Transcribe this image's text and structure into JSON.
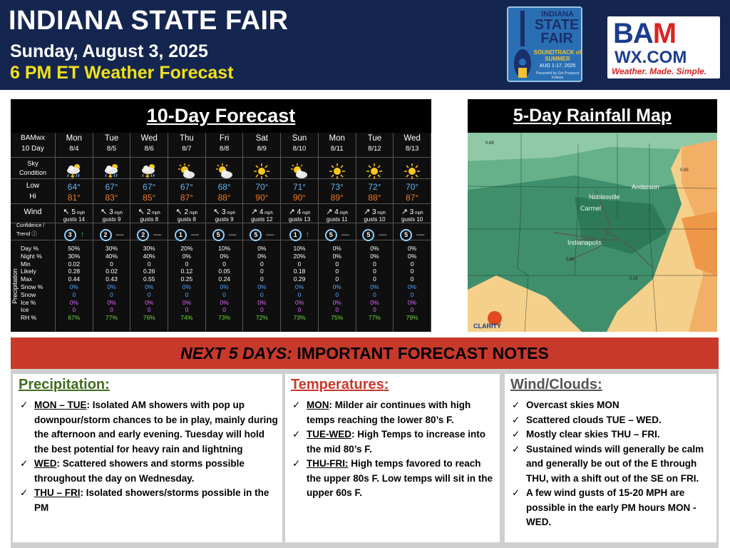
{
  "header": {
    "title": "INDIANA STATE FAIR",
    "date": "Sunday, August 3, 2025",
    "subtitle": "6 PM ET Weather Forecast"
  },
  "fair_logo": {
    "line1": "INDIANA",
    "line2": "STATE FAIR",
    "line3": "SOUNDTRACK of SUMMER",
    "line4": "AUG 1-17, 2025",
    "line5": "Presented by Get Prepared Indiana"
  },
  "bam_logo": {
    "line1_a": "BA",
    "line1_b": "M",
    "line2": "WX.COM",
    "tagline": "Weather. Made. Simple."
  },
  "forecast": {
    "title": "10-Day Forecast",
    "corner": [
      "BAMwx",
      "10 Day"
    ],
    "row_labels": {
      "sky": [
        "Sky",
        "Condition"
      ],
      "temp": [
        "Low",
        "Hi"
      ],
      "wind": "Wind",
      "confidence": [
        "Confidence /",
        "Trend"
      ],
      "precip_section": "Precipitation",
      "precip": [
        "Day %",
        "Night %",
        "Min",
        "Likely",
        "Max",
        "Snow %",
        "Snow",
        "Ice %",
        "Ice",
        "RH %"
      ]
    },
    "colors": {
      "low": "#63b5f2",
      "hi": "#f07a22",
      "snow": "#4da6ff",
      "ice": "#e066ff",
      "rh": "#6fdc3c"
    },
    "days": [
      {
        "name": "Mon",
        "date": "8/4",
        "icon": "storm-icon",
        "low": "64°",
        "hi": "81°",
        "wind_dir": "↖",
        "wind_speed": "5",
        "gusts": "gusts 14",
        "conf": "3",
        "trend": "↑",
        "precip": [
          "50%",
          "30%",
          "0.02",
          "0.28",
          "0.44",
          "0%",
          "0",
          "0%",
          "0",
          "67%"
        ]
      },
      {
        "name": "Tue",
        "date": "8/5",
        "icon": "storm-icon",
        "low": "67°",
        "hi": "83°",
        "wind_dir": "↖",
        "wind_speed": "3",
        "gusts": "gusts 9",
        "conf": "2",
        "trend": "—",
        "precip": [
          "30%",
          "40%",
          "0",
          "0.02",
          "0.43",
          "0%",
          "0",
          "0%",
          "0",
          "77%"
        ]
      },
      {
        "name": "Wed",
        "date": "8/6",
        "icon": "storm-icon",
        "low": "67°",
        "hi": "85°",
        "wind_dir": "↖",
        "wind_speed": "2",
        "gusts": "gusts 8",
        "conf": "2",
        "trend": "—",
        "precip": [
          "30%",
          "40%",
          "0",
          "0.26",
          "0.55",
          "0%",
          "0",
          "0%",
          "0",
          "76%"
        ]
      },
      {
        "name": "Thu",
        "date": "8/7",
        "icon": "partly-sunny-icon",
        "low": "67°",
        "hi": "87°",
        "wind_dir": "↖",
        "wind_speed": "2",
        "gusts": "gusts 8",
        "conf": "1",
        "trend": "—",
        "precip": [
          "20%",
          "0%",
          "0",
          "0.12",
          "0.25",
          "0%",
          "0",
          "0%",
          "0",
          "74%"
        ]
      },
      {
        "name": "Fri",
        "date": "8/8",
        "icon": "partly-sunny-icon",
        "low": "68°",
        "hi": "88°",
        "wind_dir": "↖",
        "wind_speed": "3",
        "gusts": "gusts 9",
        "conf": "5",
        "trend": "—",
        "precip": [
          "10%",
          "0%",
          "0",
          "0.05",
          "0.24",
          "0%",
          "0",
          "0%",
          "0",
          "73%"
        ]
      },
      {
        "name": "Sat",
        "date": "8/9",
        "icon": "sunny-icon",
        "low": "70°",
        "hi": "90°",
        "wind_dir": "↗",
        "wind_speed": "4",
        "gusts": "gusts 12",
        "conf": "5",
        "trend": "—",
        "precip": [
          "0%",
          "0%",
          "0",
          "0",
          "0",
          "0%",
          "0",
          "0%",
          "0",
          "72%"
        ]
      },
      {
        "name": "Sun",
        "date": "8/10",
        "icon": "partly-sunny-icon",
        "low": "71°",
        "hi": "90°",
        "wind_dir": "↗",
        "wind_speed": "4",
        "gusts": "gusts 13",
        "conf": "1",
        "trend": "↑",
        "precip": [
          "10%",
          "20%",
          "0",
          "0.18",
          "0.29",
          "0%",
          "0",
          "0%",
          "0",
          "73%"
        ]
      },
      {
        "name": "Mon",
        "date": "8/11",
        "icon": "sunny-icon",
        "low": "73°",
        "hi": "89°",
        "wind_dir": "↗",
        "wind_speed": "4",
        "gusts": "gusts 11",
        "conf": "5",
        "trend": "—",
        "precip": [
          "0%",
          "0%",
          "0",
          "0",
          "0",
          "0%",
          "0",
          "0%",
          "0",
          "75%"
        ]
      },
      {
        "name": "Tue",
        "date": "8/12",
        "icon": "sunny-icon",
        "low": "72°",
        "hi": "88°",
        "wind_dir": "↗",
        "wind_speed": "3",
        "gusts": "gusts 10",
        "conf": "5",
        "trend": "—",
        "precip": [
          "0%",
          "0%",
          "0",
          "0",
          "0",
          "0%",
          "0",
          "0%",
          "0",
          "77%"
        ]
      },
      {
        "name": "Wed",
        "date": "8/13",
        "icon": "sunny-icon",
        "low": "70°",
        "hi": "87°",
        "wind_dir": "↗",
        "wind_speed": "3",
        "gusts": "gusts 10",
        "conf": "5",
        "trend": "—",
        "precip": [
          "0%",
          "0%",
          "0",
          "0",
          "0",
          "0%",
          "0",
          "0%",
          "0",
          "79%"
        ]
      }
    ],
    "mph": "mph"
  },
  "rain_map": {
    "title": "5-Day Rainfall Map",
    "cities": [
      "Noblesville",
      "Anderson",
      "Carmel",
      "Indianapolis"
    ],
    "values": [
      "0.68",
      "0.95",
      "0.98",
      "0.85"
    ],
    "brand": "CLARITY"
  },
  "notes": {
    "banner_italic": "NEXT 5 DAYS:",
    "banner_rest": "IMPORTANT FORECAST NOTES",
    "precip": {
      "heading": "Precipitation:",
      "color": "#3e6e1f",
      "items": [
        {
          "key": "MON – TUE",
          "text": ": Isolated AM showers with pop up downpour/storm chances to be in play, mainly during the afternoon and early evening. Tuesday will hold the best potential for heavy rain and lightning"
        },
        {
          "key": "WED",
          "text": ": Scattered showers and storms possible throughout the day on Wednesday."
        },
        {
          "key": "THU – FRI",
          "text": ": Isolated showers/storms possible in the PM"
        }
      ]
    },
    "temps": {
      "heading": "Temperatures:",
      "color": "#c8392b",
      "items": [
        {
          "key": "MON",
          "text": ": Milder air continues with high temps reaching the lower 80’s F."
        },
        {
          "key": "TUE-WED",
          "text": ": High Temps to increase into the mid 80’s F."
        },
        {
          "key": "THU-FRI:",
          "text": " High temps favored to reach the upper 80s F. Low temps will sit in the upper 60s F."
        }
      ]
    },
    "wind": {
      "heading": "Wind/Clouds:",
      "color": "#555555",
      "items": [
        {
          "key": "",
          "text": "Overcast skies MON"
        },
        {
          "key": "",
          "text": "Scattered clouds TUE – WED."
        },
        {
          "key": "",
          "text": "Mostly clear skies THU – FRI."
        },
        {
          "key": "",
          "text": "Sustained winds will generally be calm and generally be out of the E through THU, with a shift out of the SE on FRI."
        },
        {
          "key": "",
          "text": "A few wind gusts of 15-20 MPH are possible in the early PM hours MON - WED."
        }
      ]
    },
    "check": "✓"
  }
}
